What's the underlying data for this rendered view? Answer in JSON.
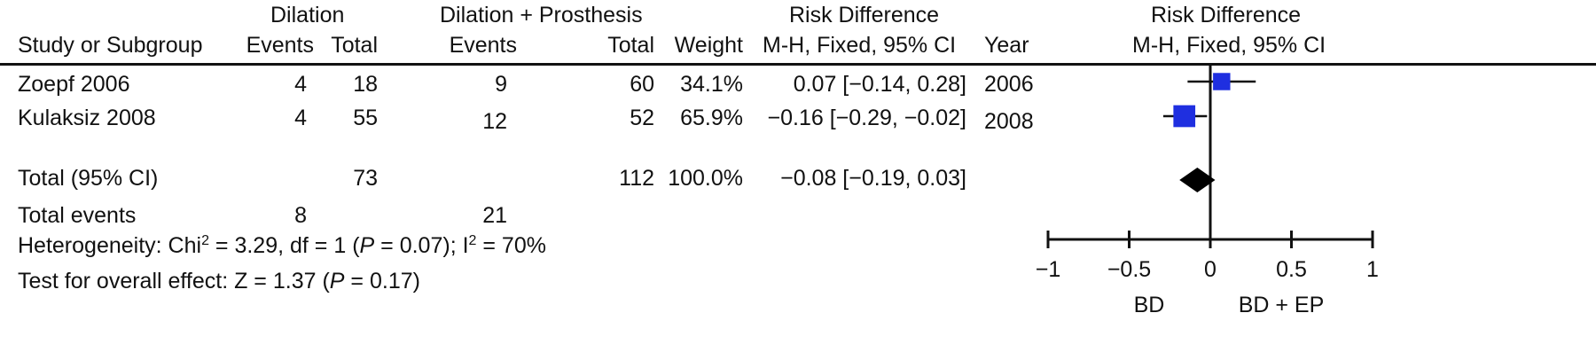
{
  "headers": {
    "group1": "Dilation",
    "group2": "Dilation + Prosthesis",
    "rd_top": "Risk Difference",
    "rd_plot_top": "Risk Difference",
    "study": "Study or Subgroup",
    "events1": "Events",
    "total1": "Total",
    "events2": "Events",
    "total2": "Total",
    "weight": "Weight",
    "method": "M-H, Fixed, 95% CI",
    "year": "Year",
    "method_plot": "M-H, Fixed, 95% CI"
  },
  "studies": [
    {
      "name": "Zoepf 2006",
      "events1": "4",
      "total1": "18",
      "events2": "9",
      "total2": "60",
      "weight": "34.1%",
      "ci": "0.07 [−0.14, 0.28]",
      "year": "2006"
    },
    {
      "name": "Kulaksiz 2008",
      "events1": "4",
      "total1": "55",
      "events2": "12",
      "total2": "52",
      "weight": "65.9%",
      "ci": "−0.16 [−0.29, −0.02]",
      "year": "2008"
    }
  ],
  "total": {
    "label": "Total (95% CI)",
    "total1": "73",
    "total2": "112",
    "weight": "100.0%",
    "ci": "−0.08 [−0.19, 0.03]"
  },
  "total_events": {
    "label": "Total events",
    "events1": "8",
    "events2": "21"
  },
  "heterogeneity": {
    "prefix": "Heterogeneity: Chi",
    "sup1": "2",
    "mid1": " = 3.29, df = 1 (",
    "p": "P",
    "mid2": " = 0.07); I",
    "sup2": "2",
    "suffix": " = 70%"
  },
  "overall": {
    "prefix": "Test for overall effect: Z = 1.37 (",
    "p": "P",
    "suffix": " = 0.17)"
  },
  "colors": {
    "study_marker": "#1f2fe0",
    "summary_marker": "#000000",
    "text": "#111111"
  },
  "chart_data": {
    "type": "forest",
    "xlim": [
      -1,
      1
    ],
    "ticks": [
      -1,
      -0.5,
      0,
      0.5,
      1
    ],
    "tick_labels": [
      "−1",
      "−0.5",
      "0",
      "0.5",
      "1"
    ],
    "left_label": "BD",
    "right_label": "BD + EP",
    "studies": [
      {
        "name": "Zoepf 2006",
        "estimate": 0.07,
        "lower": -0.14,
        "upper": 0.28,
        "weight": 34.1
      },
      {
        "name": "Kulaksiz 2008",
        "estimate": -0.16,
        "lower": -0.29,
        "upper": -0.02,
        "weight": 65.9
      }
    ],
    "summary": {
      "estimate": -0.08,
      "lower": -0.19,
      "upper": 0.03
    }
  }
}
